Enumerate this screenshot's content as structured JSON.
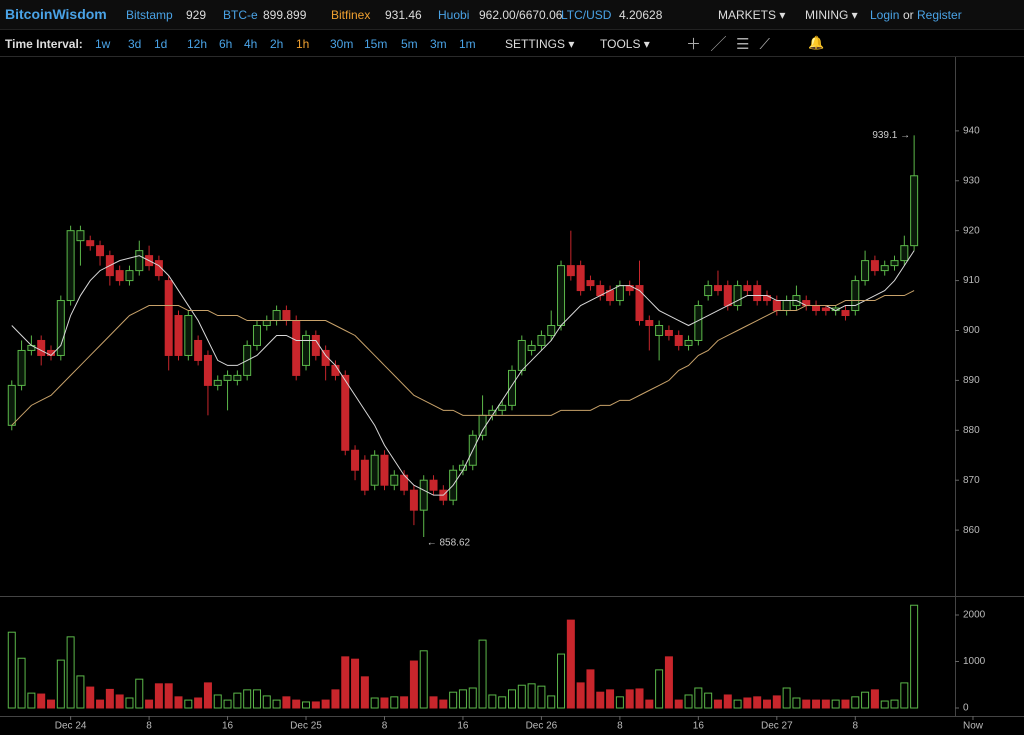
{
  "header": {
    "brand": "BitcoinWisdom",
    "tickers": [
      {
        "name": "Bitstamp",
        "price": "929"
      },
      {
        "name": "BTC-e",
        "price": "899.899"
      },
      {
        "name": "Bitfinex",
        "price": "931.46"
      },
      {
        "name": "Huobi",
        "price": "962.00/6670.06"
      },
      {
        "name": "LTC/USD",
        "price": "4.20628"
      }
    ],
    "menus": [
      "MARKETS",
      "MINING"
    ],
    "login": "Login",
    "or": "or",
    "register": "Register"
  },
  "toolbar": {
    "label": "Time Interval:",
    "intervals": [
      "1w",
      "3d",
      "1d",
      "12h",
      "6h",
      "4h",
      "2h",
      "1h",
      "30m",
      "15m",
      "5m",
      "3m",
      "1m"
    ],
    "active_interval": "1h",
    "menus": [
      "SETTINGS",
      "TOOLS"
    ]
  },
  "chart_data": {
    "type": "candlestick",
    "up_color": "#5cb84a",
    "down_color": "#c8262c",
    "ma_colors": [
      "#d8d8d8",
      "#c8a26a"
    ],
    "xlim": [
      -1.2,
      97.9
    ],
    "xticks": [
      {
        "value": 6,
        "label": "Dec 24"
      },
      {
        "value": 14,
        "label": "8"
      },
      {
        "value": 22,
        "label": "16"
      },
      {
        "value": 30,
        "label": "Dec 25"
      },
      {
        "value": 38,
        "label": "8"
      },
      {
        "value": 46,
        "label": "16"
      },
      {
        "value": 54,
        "label": "Dec 26"
      },
      {
        "value": 62,
        "label": "8"
      },
      {
        "value": 70,
        "label": "16"
      },
      {
        "value": 78,
        "label": "Dec 27"
      },
      {
        "value": 86,
        "label": "8"
      },
      {
        "value": 98,
        "label": "Now"
      }
    ],
    "ylim": [
      846.8,
      954.8
    ],
    "yticks": [
      860,
      870,
      880,
      890,
      900,
      910,
      920,
      930,
      940
    ],
    "vol_ylim": [
      -172,
      2387
    ],
    "vol_yticks": [
      0,
      1000,
      2000
    ],
    "high_label": "939.1 →",
    "low_label": "← 858.62",
    "open": [
      881,
      889,
      896,
      898,
      896,
      895,
      906,
      918,
      918,
      917,
      915,
      912,
      910,
      912,
      915,
      914,
      910,
      903,
      895,
      898,
      895,
      889,
      890,
      890,
      891,
      897,
      901,
      902,
      904,
      902,
      893,
      899,
      896,
      893,
      891,
      876,
      874,
      869,
      875,
      869,
      871,
      868,
      864,
      870,
      868,
      866,
      872,
      873,
      879,
      883,
      884,
      885,
      892,
      896,
      897,
      899,
      901,
      913,
      913,
      910,
      909,
      908,
      906,
      909,
      909,
      902,
      899,
      900,
      899,
      897,
      898,
      907,
      909,
      909,
      905,
      909,
      909,
      907,
      906,
      904,
      905,
      906,
      905,
      904.5,
      904,
      904,
      904,
      910,
      914,
      912,
      913,
      914,
      917
    ],
    "high": [
      890,
      898,
      899,
      899,
      897,
      907,
      921,
      921,
      919,
      918,
      916,
      913,
      913,
      918,
      917,
      915,
      911,
      904,
      904,
      899,
      896,
      891,
      892,
      892,
      898,
      902,
      903,
      905,
      905,
      903,
      900,
      900,
      897,
      894,
      892,
      877,
      875,
      876,
      876,
      872,
      872,
      869,
      871,
      871,
      869,
      873,
      874,
      880,
      887,
      885,
      886,
      893,
      899,
      898,
      900,
      904,
      914,
      920,
      914,
      911,
      910,
      909,
      910,
      910,
      914,
      903,
      902,
      901,
      900,
      899,
      906,
      910,
      912,
      910,
      910,
      910,
      910,
      908,
      907,
      907,
      909,
      907,
      906,
      905,
      905,
      905,
      911,
      916,
      915,
      914,
      915,
      919,
      939.1
    ],
    "low": [
      880,
      888,
      895,
      893,
      894,
      894,
      905,
      913,
      916,
      913,
      909,
      909,
      909,
      911,
      912,
      910,
      892,
      894,
      894,
      893,
      883,
      888,
      884,
      889,
      890,
      896,
      900,
      901,
      901,
      890,
      892,
      894,
      890,
      890,
      875,
      870,
      867,
      868,
      868,
      868,
      867,
      861,
      858.62,
      867,
      865,
      865,
      871,
      872,
      878,
      882,
      883,
      884,
      891,
      895,
      896,
      898,
      900,
      910,
      907,
      908,
      906,
      905,
      905,
      907,
      901,
      896,
      894,
      898,
      896,
      896,
      897,
      906,
      907,
      904,
      904,
      907,
      905,
      905,
      903,
      903,
      904,
      904,
      903,
      903,
      903,
      902,
      903,
      909,
      911,
      911,
      912,
      913,
      916
    ],
    "close": [
      889,
      896,
      897,
      895,
      895,
      906,
      920,
      920,
      917,
      915,
      911,
      910,
      912,
      916,
      913,
      911,
      895,
      895,
      903,
      894,
      889,
      890,
      891,
      891,
      897,
      901,
      902,
      904,
      902,
      891,
      899,
      895,
      893,
      891,
      876,
      872,
      868,
      875,
      869,
      871,
      868,
      864,
      870,
      868,
      866,
      872,
      873,
      879,
      883,
      884,
      885,
      892,
      898,
      897,
      899,
      901,
      913,
      911,
      908,
      909,
      907,
      906,
      909,
      908,
      902,
      901,
      901,
      899,
      897,
      898,
      905,
      909,
      908,
      905,
      909,
      908,
      906,
      906,
      904,
      906,
      907,
      905,
      904,
      904,
      904.5,
      903,
      910,
      914,
      912,
      913,
      914,
      917,
      931
    ],
    "volume": [
      1630,
      1070,
      320,
      300,
      170,
      1030,
      1530,
      690,
      450,
      170,
      400,
      280,
      215,
      620,
      170,
      520,
      520,
      240,
      170,
      215,
      540,
      280,
      170,
      320,
      390,
      390,
      260,
      170,
      240,
      170,
      130,
      130,
      170,
      390,
      1100,
      1050,
      670,
      215,
      215,
      240,
      240,
      1010,
      1230,
      240,
      170,
      340,
      390,
      430,
      1460,
      280,
      240,
      390,
      490,
      520,
      470,
      260,
      1160,
      1890,
      540,
      820,
      340,
      390,
      240,
      390,
      410,
      170,
      820,
      1100,
      170,
      280,
      430,
      320,
      170,
      280,
      170,
      215,
      240,
      170,
      260,
      430,
      215,
      170,
      170,
      170,
      170,
      170,
      240,
      340,
      390,
      150,
      170,
      540,
      2210
    ],
    "ma": [
      [
        901,
        899,
        897,
        896,
        895,
        897,
        903,
        907,
        910,
        912,
        913,
        914,
        914.5,
        915,
        914,
        913,
        911,
        908,
        905,
        902,
        898,
        894,
        893,
        893,
        894,
        895,
        897,
        899,
        899,
        898,
        898,
        898,
        895,
        893,
        890,
        887,
        884,
        881,
        877,
        874,
        871,
        869,
        868,
        867,
        867,
        869,
        872,
        876,
        880,
        883,
        886,
        889,
        892,
        894,
        896,
        898,
        901,
        903,
        905,
        906,
        907,
        908,
        909,
        909,
        908,
        906,
        904,
        903,
        902,
        901,
        902,
        903,
        904,
        905,
        906,
        907,
        907,
        907,
        906,
        906,
        906,
        905,
        905,
        905,
        904,
        905,
        905,
        906,
        907,
        908,
        910,
        913,
        916
      ],
      [
        881,
        883,
        885,
        886,
        887,
        889,
        891,
        893,
        895,
        897,
        899,
        901,
        903,
        904,
        905,
        905,
        905,
        905,
        904,
        904,
        904,
        903,
        903,
        903,
        902,
        902,
        902,
        902,
        902,
        902,
        902,
        902,
        902,
        901,
        900,
        899,
        897,
        895,
        893,
        891,
        889,
        887,
        886,
        885,
        884,
        884,
        883,
        883,
        883,
        883,
        883,
        883,
        883,
        883,
        883,
        883,
        884,
        884,
        884,
        884,
        885,
        885,
        886,
        886,
        887,
        888,
        889,
        890,
        892,
        893,
        895,
        896,
        898,
        899,
        900,
        901,
        902,
        903,
        904,
        904,
        904,
        905,
        905,
        905,
        905,
        906,
        906,
        906,
        906,
        907,
        907,
        907,
        908
      ]
    ]
  }
}
